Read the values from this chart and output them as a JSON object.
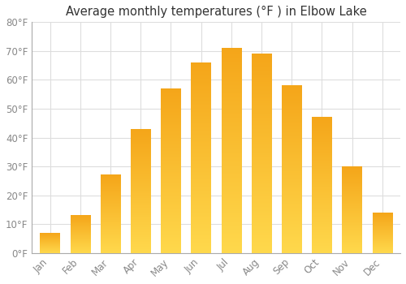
{
  "title": "Average monthly temperatures (°F ) in Elbow Lake",
  "months": [
    "Jan",
    "Feb",
    "Mar",
    "Apr",
    "May",
    "Jun",
    "Jul",
    "Aug",
    "Sep",
    "Oct",
    "Nov",
    "Dec"
  ],
  "values": [
    7,
    13,
    27,
    43,
    57,
    66,
    71,
    69,
    58,
    47,
    30,
    14
  ],
  "bar_color": "#FFA500",
  "bar_color_top": "#F0A500",
  "bar_color_bottom": "#FFCC44",
  "ylim": [
    0,
    80
  ],
  "yticks": [
    0,
    10,
    20,
    30,
    40,
    50,
    60,
    70,
    80
  ],
  "background_color": "#FFFFFF",
  "grid_color": "#DDDDDD",
  "title_fontsize": 10.5,
  "tick_fontsize": 8.5,
  "tick_color": "#888888"
}
